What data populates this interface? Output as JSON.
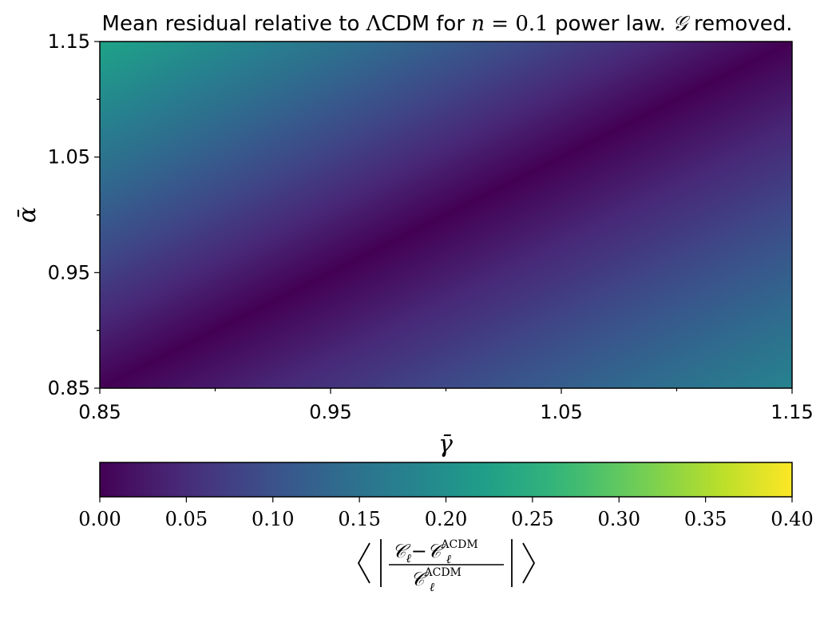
{
  "chart_data": {
    "type": "heatmap",
    "title": {
      "prefix": "Mean residual relative to ",
      "lambda_symbol": "Λ",
      "cdm": "CDM for ",
      "n_var": "n",
      "n_eq": " = 0.1",
      "mid": " power law. ",
      "g_symbol": "𝒢",
      "suffix": " removed."
    },
    "xlabel": "γ̄",
    "ylabel": "ᾱ",
    "xlim": [
      0.85,
      1.15
    ],
    "ylim": [
      0.85,
      1.15
    ],
    "x_ticks": [
      "0.85",
      "0.95",
      "1.05",
      "1.15"
    ],
    "y_ticks": [
      "0.85",
      "0.95",
      "1.05",
      "1.15"
    ],
    "colormap": "viridis",
    "z_description": "mean |C_l - C_l^ΛCDM| / C_l^ΛCDM",
    "z_min_line": "alpha = gamma",
    "corner_values": {
      "x0.85_y1.15": 0.23,
      "x1.15_y0.85": 0.18,
      "x0.85_y0.85": 0.02,
      "x1.15_y1.15": 0.03,
      "x1.00_y1.00": 0.0
    },
    "colorbar": {
      "range": [
        0.0,
        0.4
      ],
      "ticks": [
        "0.00",
        "0.05",
        "0.10",
        "0.15",
        "0.20",
        "0.25",
        "0.30",
        "0.35",
        "0.40"
      ],
      "label": {
        "num_a": "𝒞",
        "num_a_sub": "ℓ",
        "minus": "−",
        "num_b": "𝒞",
        "num_b_sub": "ℓ",
        "num_b_sup": "ΛCDM",
        "den": "𝒞",
        "den_sub": "ℓ",
        "den_sup": "ΛCDM"
      }
    },
    "grid": false
  }
}
